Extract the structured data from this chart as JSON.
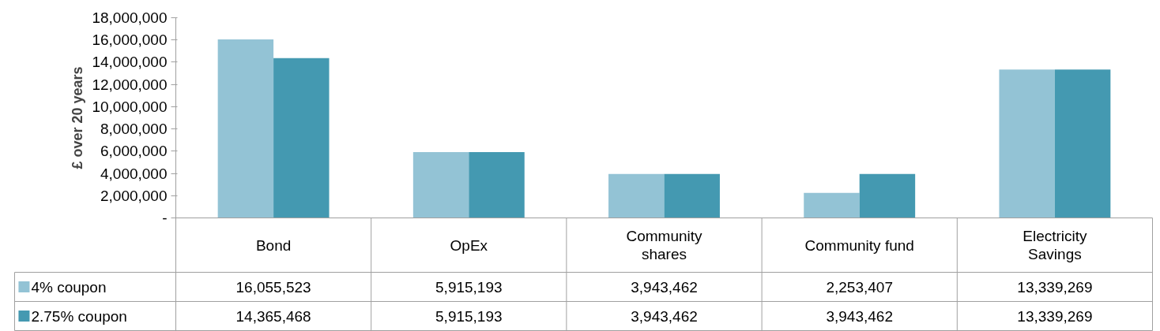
{
  "chart_data": {
    "type": "bar",
    "ylabel": "£ over 20 years",
    "categories": [
      "Bond",
      "OpEx",
      "Community shares",
      "Community fund",
      "Electricity Savings"
    ],
    "series": [
      {
        "name": "4% coupon",
        "color": "#93c3d5",
        "values": [
          16055523,
          5915193,
          3943462,
          2253407,
          13339269
        ],
        "value_labels": [
          "16,055,523",
          "5,915,193",
          "3,943,462",
          "2,253,407",
          "13,339,269"
        ]
      },
      {
        "name": "2.75% coupon",
        "color": "#4499b1",
        "values": [
          14365468,
          5915193,
          3943462,
          3943462,
          13339269
        ],
        "value_labels": [
          "14,365,468",
          "5,915,193",
          "3,943,462",
          "3,943,462",
          "13,339,269"
        ]
      }
    ],
    "ylim": [
      0,
      18000000
    ],
    "yticks": [
      {
        "value": 0,
        "label": "-"
      },
      {
        "value": 2000000,
        "label": "2,000,000"
      },
      {
        "value": 4000000,
        "label": "4,000,000"
      },
      {
        "value": 6000000,
        "label": "6,000,000"
      },
      {
        "value": 8000000,
        "label": "8,000,000"
      },
      {
        "value": 10000000,
        "label": "10,000,000"
      },
      {
        "value": 12000000,
        "label": "12,000,000"
      },
      {
        "value": 14000000,
        "label": "14,000,000"
      },
      {
        "value": 16000000,
        "label": "16,000,000"
      },
      {
        "value": 18000000,
        "label": "18,000,000"
      }
    ],
    "grid": false,
    "legend": "bottom"
  }
}
